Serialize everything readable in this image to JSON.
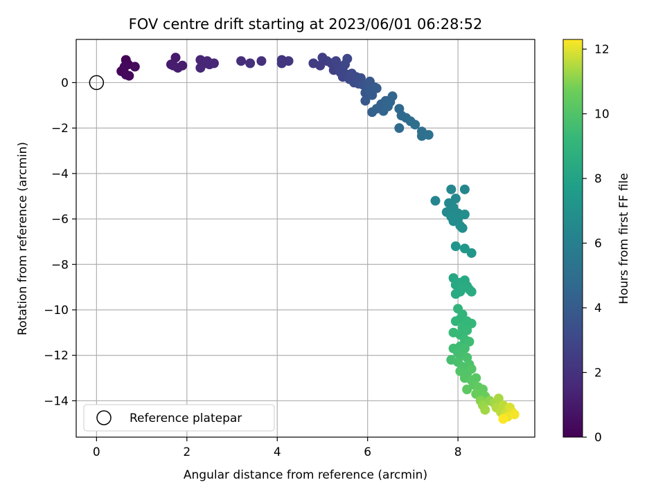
{
  "chart_data": {
    "type": "scatter",
    "title": "FOV centre drift starting at 2023/06/01 06:28:52",
    "xlabel": "Angular distance from reference (arcmin)",
    "ylabel": "Rotation from reference (arcmin)",
    "xlim": [
      -0.45,
      9.7
    ],
    "ylim": [
      -15.6,
      1.9
    ],
    "xticks": [
      0,
      2,
      4,
      6,
      8
    ],
    "yticks": [
      0,
      -2,
      -4,
      -6,
      -8,
      -10,
      -12,
      -14
    ],
    "xtick_labels": [
      "0",
      "2",
      "4",
      "6",
      "8"
    ],
    "ytick_labels": [
      "0",
      "−2",
      "−4",
      "−6",
      "−8",
      "−10",
      "−12",
      "−14"
    ],
    "grid": true,
    "colormap": "viridis",
    "colorbar": {
      "label": "Hours from first FF file",
      "range": [
        0,
        12.3
      ],
      "ticks": [
        0,
        2,
        4,
        6,
        8,
        10,
        12
      ],
      "tick_labels": [
        "0",
        "2",
        "4",
        "6",
        "8",
        "10",
        "12"
      ]
    },
    "legend": {
      "position": "lower-left",
      "entries": [
        "Reference platepar"
      ]
    },
    "reference_point": {
      "x": 0,
      "y": 0
    },
    "points": [
      [
        0.6,
        0.6,
        0.1
      ],
      [
        0.65,
        1.0,
        0.1
      ],
      [
        0.7,
        0.8,
        0.2
      ],
      [
        0.55,
        0.5,
        0.2
      ],
      [
        0.65,
        0.35,
        0.3
      ],
      [
        0.72,
        0.3,
        0.3
      ],
      [
        0.85,
        0.7,
        0.4
      ],
      [
        0.62,
        0.7,
        0.3
      ],
      [
        1.65,
        0.8,
        1.0
      ],
      [
        1.75,
        1.1,
        1.0
      ],
      [
        1.8,
        0.65,
        1.1
      ],
      [
        1.9,
        0.75,
        1.1
      ],
      [
        1.7,
        0.75,
        1.1
      ],
      [
        2.3,
        1.0,
        1.4
      ],
      [
        2.4,
        0.85,
        1.4
      ],
      [
        2.5,
        0.8,
        1.5
      ],
      [
        2.6,
        0.85,
        1.5
      ],
      [
        2.3,
        0.65,
        1.5
      ],
      [
        2.45,
        0.95,
        1.5
      ],
      [
        3.2,
        0.95,
        1.8
      ],
      [
        3.4,
        0.85,
        1.9
      ],
      [
        3.65,
        0.95,
        1.9
      ],
      [
        4.1,
        1.0,
        2.1
      ],
      [
        4.25,
        0.95,
        2.2
      ],
      [
        4.1,
        0.85,
        2.2
      ],
      [
        4.8,
        0.85,
        2.5
      ],
      [
        4.95,
        0.75,
        2.5
      ],
      [
        5.0,
        1.1,
        2.6
      ],
      [
        5.1,
        0.95,
        2.6
      ],
      [
        5.2,
        0.85,
        2.7
      ],
      [
        5.25,
        0.55,
        2.7
      ],
      [
        5.3,
        0.95,
        2.8
      ],
      [
        5.35,
        0.75,
        2.8
      ],
      [
        5.4,
        0.45,
        2.9
      ],
      [
        5.45,
        0.25,
        2.9
      ],
      [
        5.45,
        0.65,
        2.9
      ],
      [
        5.5,
        0.8,
        3.0
      ],
      [
        5.55,
        1.05,
        3.0
      ],
      [
        5.55,
        0.35,
        3.0
      ],
      [
        5.6,
        0.15,
        3.1
      ],
      [
        5.65,
        0.4,
        3.1
      ],
      [
        5.7,
        0.0,
        3.2
      ],
      [
        5.75,
        0.25,
        3.2
      ],
      [
        5.8,
        -0.05,
        3.3
      ],
      [
        5.85,
        0.2,
        3.3
      ],
      [
        5.9,
        -0.1,
        3.6
      ],
      [
        5.95,
        -0.45,
        3.7
      ],
      [
        6.0,
        -0.2,
        3.7
      ],
      [
        5.95,
        -0.8,
        3.8
      ],
      [
        6.05,
        0.05,
        3.8
      ],
      [
        6.1,
        -0.55,
        3.9
      ],
      [
        6.15,
        -0.2,
        3.9
      ],
      [
        6.05,
        -0.35,
        3.9
      ],
      [
        6.2,
        -0.25,
        4.0
      ],
      [
        6.1,
        -1.3,
        4.2
      ],
      [
        6.2,
        -1.15,
        4.3
      ],
      [
        6.3,
        -0.95,
        4.3
      ],
      [
        6.4,
        -0.8,
        4.4
      ],
      [
        6.35,
        -1.25,
        4.4
      ],
      [
        6.45,
        -1.05,
        4.5
      ],
      [
        6.5,
        -0.85,
        4.5
      ],
      [
        6.55,
        -0.6,
        4.5
      ],
      [
        6.7,
        -1.15,
        4.7
      ],
      [
        6.75,
        -1.45,
        4.7
      ],
      [
        6.85,
        -1.55,
        4.8
      ],
      [
        6.7,
        -2.0,
        4.8
      ],
      [
        6.95,
        -1.7,
        4.9
      ],
      [
        7.05,
        -1.85,
        5.0
      ],
      [
        7.2,
        -2.15,
        5.1
      ],
      [
        7.2,
        -2.35,
        5.1
      ],
      [
        7.35,
        -2.3,
        5.2
      ],
      [
        7.5,
        -5.2,
        6.3
      ],
      [
        7.85,
        -4.7,
        6.4
      ],
      [
        8.15,
        -4.7,
        6.4
      ],
      [
        7.8,
        -5.3,
        6.5
      ],
      [
        7.95,
        -5.1,
        6.5
      ],
      [
        7.9,
        -5.5,
        6.6
      ],
      [
        7.75,
        -5.7,
        6.6
      ],
      [
        8.0,
        -5.75,
        6.6
      ],
      [
        7.85,
        -5.9,
        6.7
      ],
      [
        7.9,
        -6.1,
        6.7
      ],
      [
        8.0,
        -6.0,
        6.7
      ],
      [
        8.15,
        -5.8,
        6.8
      ],
      [
        8.05,
        -6.3,
        6.8
      ],
      [
        8.1,
        -6.4,
        6.8
      ],
      [
        7.95,
        -7.2,
        7.2
      ],
      [
        8.15,
        -7.3,
        7.3
      ],
      [
        8.3,
        -7.5,
        7.3
      ],
      [
        7.9,
        -8.6,
        8.2
      ],
      [
        7.95,
        -8.9,
        8.3
      ],
      [
        8.05,
        -8.8,
        8.3
      ],
      [
        8.15,
        -8.7,
        8.3
      ],
      [
        8.2,
        -8.95,
        8.4
      ],
      [
        7.95,
        -9.3,
        8.4
      ],
      [
        8.05,
        -9.2,
        8.4
      ],
      [
        8.1,
        -9.0,
        8.5
      ],
      [
        8.25,
        -9.1,
        8.5
      ],
      [
        8.3,
        -9.2,
        8.5
      ],
      [
        8.0,
        -9.95,
        9.0
      ],
      [
        8.1,
        -10.2,
        9.1
      ],
      [
        7.95,
        -10.5,
        9.1
      ],
      [
        8.05,
        -10.4,
        9.1
      ],
      [
        8.2,
        -10.5,
        9.2
      ],
      [
        8.3,
        -10.6,
        9.2
      ],
      [
        8.1,
        -10.8,
        9.2
      ],
      [
        8.2,
        -10.9,
        9.3
      ],
      [
        7.9,
        -11.0,
        9.3
      ],
      [
        8.05,
        -11.1,
        9.3
      ],
      [
        8.15,
        -11.3,
        9.4
      ],
      [
        8.25,
        -11.4,
        9.5
      ],
      [
        7.9,
        -11.7,
        9.5
      ],
      [
        8.05,
        -11.6,
        9.5
      ],
      [
        8.15,
        -11.7,
        9.6
      ],
      [
        8.0,
        -11.9,
        9.6
      ],
      [
        8.1,
        -12.0,
        9.7
      ],
      [
        7.85,
        -12.2,
        9.7
      ],
      [
        8.2,
        -12.1,
        9.8
      ],
      [
        8.0,
        -12.3,
        9.8
      ],
      [
        8.1,
        -12.5,
        9.9
      ],
      [
        8.25,
        -12.4,
        9.9
      ],
      [
        8.05,
        -12.7,
        10.0
      ],
      [
        8.2,
        -12.8,
        10.0
      ],
      [
        8.3,
        -12.6,
        10.1
      ],
      [
        8.15,
        -13.0,
        10.1
      ],
      [
        8.3,
        -13.1,
        10.2
      ],
      [
        8.4,
        -13.0,
        10.2
      ],
      [
        8.35,
        -13.3,
        10.3
      ],
      [
        8.2,
        -13.5,
        10.3
      ],
      [
        8.45,
        -13.4,
        10.4
      ],
      [
        8.5,
        -13.6,
        10.5
      ],
      [
        8.55,
        -13.5,
        10.5
      ],
      [
        8.4,
        -13.7,
        10.6
      ],
      [
        8.6,
        -13.8,
        10.6
      ],
      [
        8.5,
        -14.0,
        11.0
      ],
      [
        8.7,
        -14.0,
        11.1
      ],
      [
        8.55,
        -14.2,
        11.2
      ],
      [
        8.8,
        -14.1,
        11.3
      ],
      [
        8.6,
        -14.4,
        11.3
      ],
      [
        8.9,
        -13.9,
        11.4
      ],
      [
        8.85,
        -14.3,
        11.5
      ],
      [
        9.0,
        -14.2,
        11.6
      ],
      [
        8.95,
        -14.5,
        11.6
      ],
      [
        9.1,
        -14.4,
        11.7
      ],
      [
        9.05,
        -14.6,
        11.8
      ],
      [
        9.15,
        -14.3,
        11.9
      ],
      [
        9.2,
        -14.5,
        12.0
      ],
      [
        9.1,
        -14.7,
        12.1
      ],
      [
        9.25,
        -14.6,
        12.2
      ],
      [
        9.0,
        -14.8,
        12.3
      ]
    ]
  }
}
